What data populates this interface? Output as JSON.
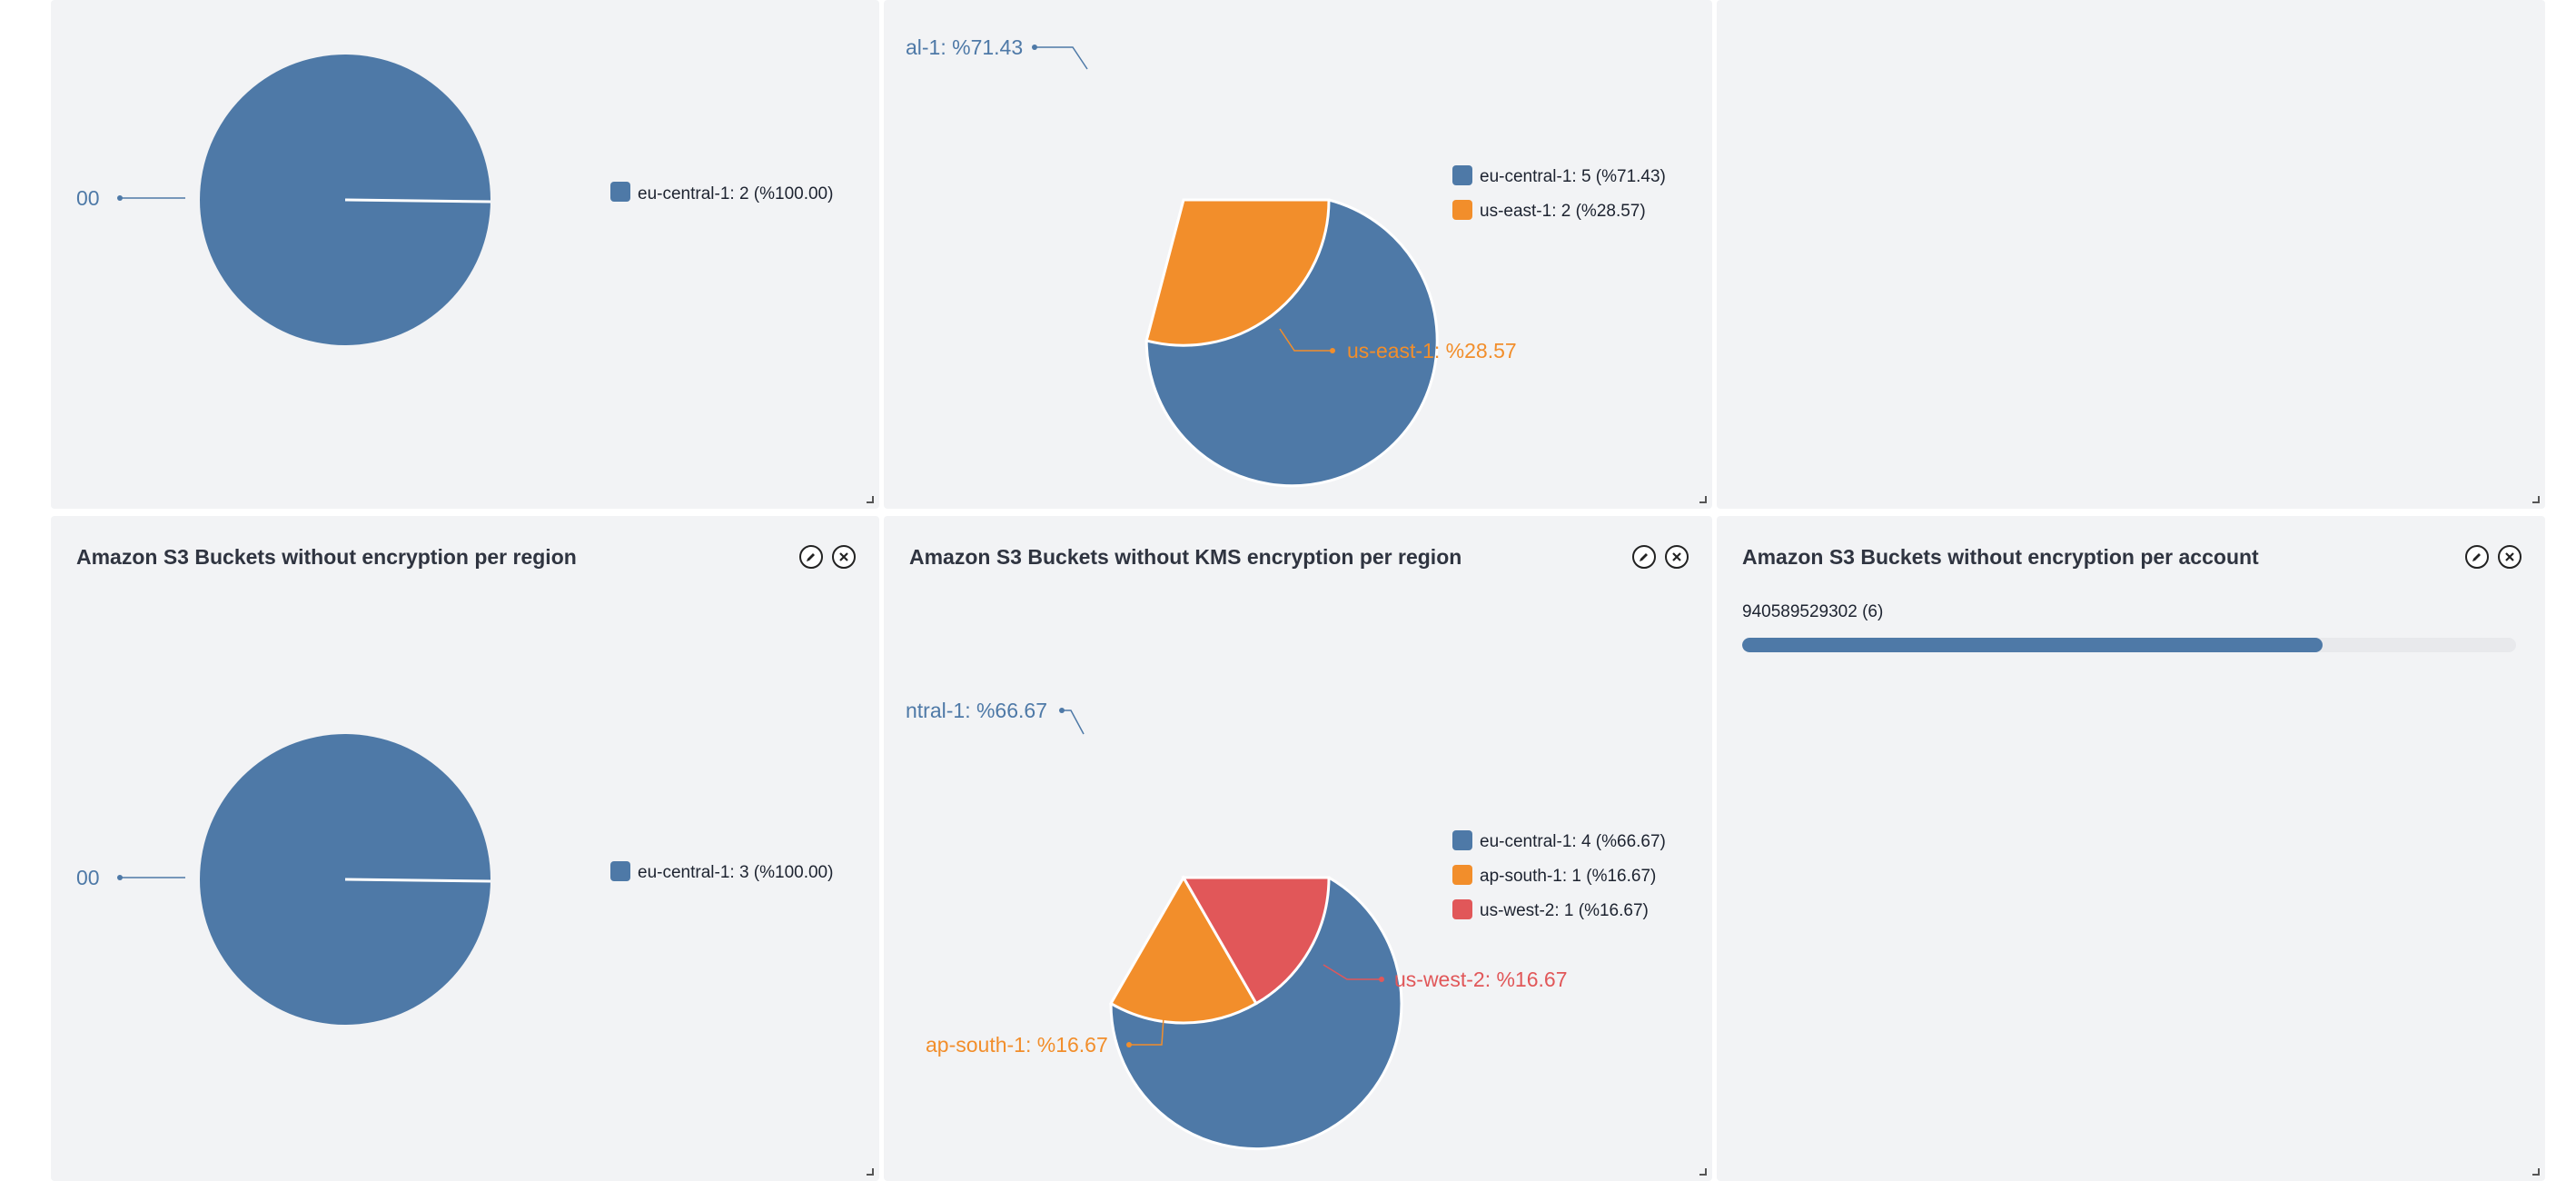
{
  "colors": {
    "blue": "#4e79a7",
    "orange": "#f28e2b",
    "red": "#e15759",
    "panel_bg": "#f2f3f5"
  },
  "panels": {
    "top_left": {
      "edge_label": "00",
      "legend": [
        "eu-central-1: 2 (%100.00)"
      ]
    },
    "top_middle": {
      "slice_labels": [
        "al-1: %71.43",
        "us-east-1: %28.57"
      ],
      "legend": [
        "eu-central-1: 5 (%71.43)",
        "us-east-1: 2 (%28.57)"
      ]
    },
    "bottom_left": {
      "title": "Amazon S3 Buckets without encryption per region",
      "edge_label": "00",
      "legend": [
        "eu-central-1: 3 (%100.00)"
      ]
    },
    "bottom_middle": {
      "title": "Amazon S3 Buckets without KMS encryption per region",
      "slice_labels": [
        "ntral-1: %66.67",
        "us-west-2: %16.67",
        "ap-south-1: %16.67"
      ],
      "legend": [
        "eu-central-1: 4 (%66.67)",
        "ap-south-1: 1 (%16.67)",
        "us-west-2: 1 (%16.67)"
      ]
    },
    "bottom_right": {
      "title": "Amazon S3 Buckets without encryption per account",
      "bar_label": "940589529302 (6)",
      "bar_fill_fraction": 0.75
    }
  },
  "chart_data": [
    {
      "type": "pie",
      "categories": [
        "eu-central-1"
      ],
      "values": [
        2
      ]
    },
    {
      "type": "pie",
      "categories": [
        "eu-central-1",
        "us-east-1"
      ],
      "values": [
        5,
        2
      ]
    },
    {
      "type": "pie",
      "categories": [
        "eu-central-1"
      ],
      "values": [
        3
      ]
    },
    {
      "type": "pie",
      "categories": [
        "eu-central-1",
        "ap-south-1",
        "us-west-2"
      ],
      "values": [
        4,
        1,
        1
      ]
    },
    {
      "type": "bar",
      "categories": [
        "940589529302"
      ],
      "values": [
        6
      ]
    }
  ]
}
